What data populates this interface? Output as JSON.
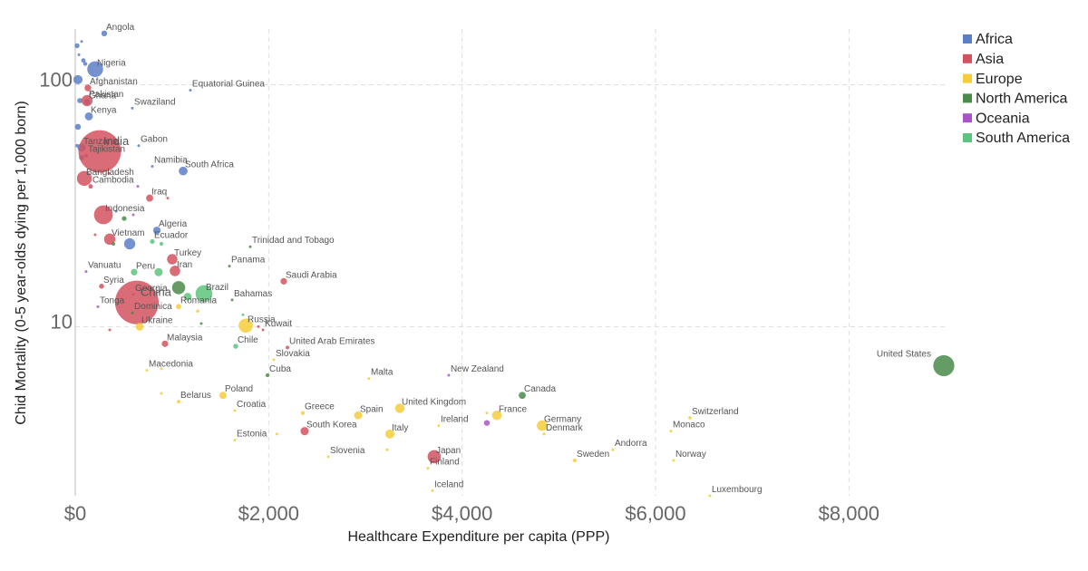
{
  "chart_data": {
    "type": "scatter",
    "x_label": "Healthcare Expenditure per capita (PPP)",
    "y_label": "Chid Mortality (0-5 year-olds dying per 1,000 born)",
    "xlim": [
      0,
      9000
    ],
    "ylim": [
      2,
      170
    ],
    "y_log": true,
    "grid": true,
    "legend": "top-right",
    "xticks": [
      {
        "value": 0,
        "label": "$0"
      },
      {
        "value": 2000,
        "label": "$2,000"
      },
      {
        "value": 4000,
        "label": "$4,000"
      },
      {
        "value": 6000,
        "label": "$6,000"
      },
      {
        "value": 8000,
        "label": "$8,000"
      }
    ],
    "yticks": [
      10,
      100
    ],
    "series": [
      {
        "name": "Africa",
        "color": "#5b7fc7",
        "labels": [
          "Angola",
          "Nigeria",
          "Swaziland",
          "Equatorial Guinea",
          "Gabon",
          "Namibia",
          "South Africa",
          "Algeria",
          "Kenya",
          "Tanzania",
          "Ghana",
          null,
          null,
          null,
          null,
          null,
          null,
          null,
          null,
          null,
          null,
          null,
          null
        ],
        "x": [
          300,
          206,
          590,
          1190,
          656,
          797,
          1116,
          844,
          141,
          66,
          122,
          563,
          19,
          66,
          103,
          28,
          47,
          84,
          28,
          19,
          66,
          422,
          38
        ],
        "y": [
          163,
          116,
          80,
          95,
          56,
          46,
          44,
          25,
          74,
          55,
          85,
          22,
          145,
          151,
          122,
          105,
          86,
          126,
          67,
          56,
          50,
          30,
          133
        ],
        "size": [
          25,
          180,
          1.3,
          0.8,
          1.7,
          2.4,
          55,
          40,
          46,
          50,
          27,
          90,
          17,
          5,
          12,
          60,
          20,
          14,
          25,
          8,
          20,
          3,
          5
        ]
      },
      {
        "name": "Asia",
        "color": "#d2525e",
        "labels": [
          "Afghanistan",
          "Pakistan",
          "India",
          "Tajikistan",
          "Bangladesh",
          "Cambodia",
          "Indonesia",
          "Iraq",
          "Vietnam",
          "Turkey",
          "Iran",
          "Syria",
          "Georgia",
          "China",
          "Saudi Arabia",
          "Kuwait",
          "United Arab Emirates",
          "Malaysia",
          "South Korea",
          "Japan",
          null,
          null,
          null,
          null,
          null
        ],
        "x": [
          131,
          122,
          253,
          112,
          94,
          159,
          291,
          769,
          356,
          1003,
          1031,
          272,
          600,
          637,
          2156,
          1941,
          2194,
          928,
          2372,
          3712,
          356,
          956,
          206,
          347,
          1894
        ],
        "y": [
          97,
          86,
          53,
          51,
          41,
          38,
          29,
          34,
          23,
          19,
          17,
          14.7,
          13.6,
          12.6,
          15.4,
          9.7,
          8.2,
          8.5,
          3.7,
          2.9,
          9.7,
          34,
          24,
          43,
          10
        ],
        "size": [
          33,
          90,
          1300,
          9,
          160,
          15,
          255,
          36,
          92,
          78,
          79,
          18,
          4,
          1370,
          31,
          4,
          9,
          30,
          50,
          127,
          3,
          2,
          5,
          2,
          2
        ]
      },
      {
        "name": "Europe",
        "color": "#f5cc3a",
        "labels": [
          "Ukraine",
          "Russia",
          "Macedonia",
          "Belarus",
          "Poland",
          "Croatia",
          "Estonia",
          "Slovakia",
          "Malta",
          "Greece",
          "Spain",
          "United Kingdom",
          "Italy",
          "Ireland",
          "Slovenia",
          "Finland",
          "Iceland",
          "France",
          "Germany",
          "Denmark",
          "Sweden",
          "Andorra",
          "Switzerland",
          "Monaco",
          "Norway",
          "Luxembourg",
          "Romania",
          null,
          null,
          null,
          null,
          null,
          null
        ],
        "x": [
          666,
          1763,
          741,
          1069,
          1528,
          1650,
          1650,
          2053,
          3037,
          2353,
          2925,
          3356,
          3253,
          3759,
          2616,
          3647,
          3694,
          4359,
          4828,
          4847,
          5166,
          5559,
          6356,
          6159,
          6187,
          6562,
          1069,
          891,
          891,
          1266,
          2085,
          3225,
          4256
        ],
        "y": [
          10,
          10.1,
          6.6,
          4.9,
          5.2,
          4.5,
          3.4,
          7.3,
          6.1,
          4.4,
          4.3,
          4.6,
          3.6,
          3.9,
          2.9,
          2.6,
          2.1,
          4.3,
          3.9,
          3.6,
          2.8,
          3.1,
          4.2,
          3.7,
          2.8,
          2.0,
          12.1,
          6.7,
          5.3,
          11.6,
          3.6,
          3.1,
          4.4
        ],
        "size": [
          45,
          144,
          2,
          9,
          38,
          4,
          1.3,
          5,
          0.4,
          11,
          46,
          64,
          60,
          4.6,
          2,
          5.4,
          0.3,
          66,
          81,
          5.7,
          9.8,
          0.08,
          8,
          0.04,
          5.2,
          0.6,
          20,
          1,
          2,
          7,
          2,
          1,
          1
        ]
      },
      {
        "name": "North America",
        "color": "#4a8a4a",
        "labels": [
          "United States",
          "Canada",
          "Cuba",
          "Dominica",
          "Bahamas",
          "Panama",
          "Trinidad and Tobago",
          null,
          null,
          null,
          null
        ],
        "x": [
          8981,
          4622,
          1988,
          591,
          1622,
          1594,
          1809,
          1069,
          506,
          394,
          1303
        ],
        "y": [
          6.9,
          5.2,
          6.3,
          11.4,
          12.9,
          17.8,
          21.4,
          14.5,
          28,
          22,
          10.3
        ],
        "size": [
          320,
          36,
          11,
          0.07,
          0.4,
          4,
          1.3,
          125,
          16,
          9,
          3
        ]
      },
      {
        "name": "Oceania",
        "color": "#a955c9",
        "labels": [
          "New Zealand",
          "Vanuatu",
          "Tonga",
          null,
          null,
          null
        ],
        "x": [
          3862,
          112,
          234,
          4256,
          647,
          600
        ],
        "y": [
          6.3,
          16.9,
          12.1,
          4.0,
          38,
          29
        ],
        "size": [
          4.6,
          0.3,
          0.1,
          24,
          0.5,
          0.6
        ]
      },
      {
        "name": "South America",
        "color": "#5dc47d",
        "labels": [
          "Brazil",
          "Peru",
          "Ecuador",
          "Chile",
          null,
          null,
          null,
          null
        ],
        "x": [
          1331,
          609,
          797,
          1659,
          862,
          1162,
          891,
          1734
        ],
        "y": [
          13.7,
          16.8,
          22.5,
          8.3,
          16.8,
          13.3,
          22,
          11.2
        ],
        "size": [
          206,
          31,
          16,
          18,
          48,
          43,
          11,
          3
        ]
      }
    ]
  }
}
